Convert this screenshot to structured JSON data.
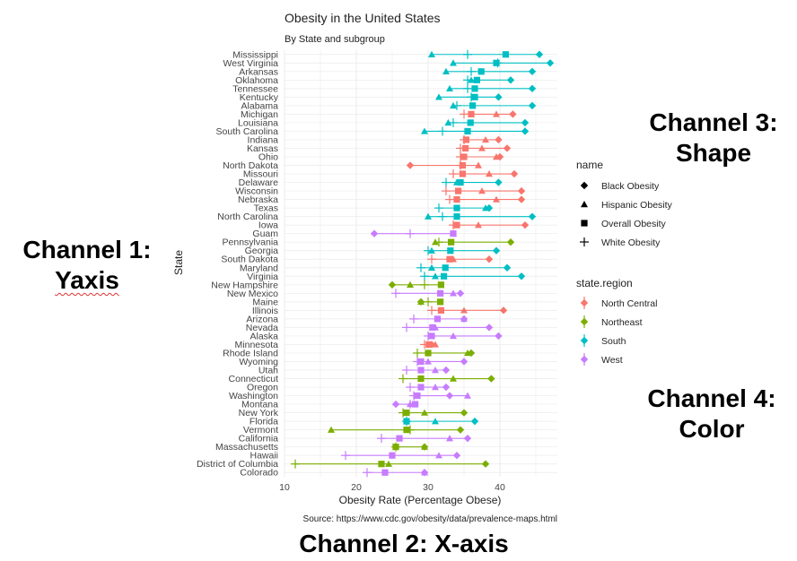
{
  "colors": {
    "North Central": "#F8766D",
    "Northeast": "#7CAE00",
    "South": "#00BFC4",
    "West": "#C77CFF"
  },
  "annotations": {
    "channel1_line1": "Channel 1:",
    "channel1_line2": "Yaxis",
    "channel2": "Channel 2: X-axis",
    "channel3_line1": "Channel 3:",
    "channel3_line2": "Shape",
    "channel4_line1": "Channel 4:",
    "channel4_line2": "Color"
  },
  "chart_data": {
    "type": "dot-range",
    "title": "Obesity in the United States",
    "subtitle": "By State and subgroup",
    "xlabel": "Obesity Rate (Percentage Obese)",
    "ylabel": "State",
    "caption": "Source: https://www.cdc.gov/obesity/data/prevalence-maps.html",
    "xlim": [
      10,
      48
    ],
    "xticks": [
      10,
      20,
      30,
      40
    ],
    "grid": true,
    "legend_placement": "right",
    "shape_legend": {
      "title": "name",
      "items": [
        "Black Obesity",
        "Hispanic Obesity",
        "Overall Obesity",
        "White Obesity"
      ]
    },
    "color_legend": {
      "title": "state.region",
      "items": [
        "North Central",
        "Northeast",
        "South",
        "West"
      ]
    },
    "rows": [
      {
        "state": "Mississippi",
        "region": "South",
        "overall": 40.8,
        "white": 35.5,
        "black": 45.5,
        "hispanic": 30.5
      },
      {
        "state": "West Virginia",
        "region": "South",
        "overall": 39.5,
        "white": 39.7,
        "black": 47.0,
        "hispanic": 33.5
      },
      {
        "state": "Arkansas",
        "region": "South",
        "overall": 37.4,
        "white": 36.0,
        "black": 44.5,
        "hispanic": 32.5
      },
      {
        "state": "Oklahoma",
        "region": "South",
        "overall": 36.8,
        "white": 35.5,
        "black": 41.5,
        "hispanic": 36.0
      },
      {
        "state": "Tennessee",
        "region": "South",
        "overall": 36.5,
        "white": 35.5,
        "black": 44.5,
        "hispanic": 33.0
      },
      {
        "state": "Kentucky",
        "region": "South",
        "overall": 36.5,
        "white": 36.0,
        "black": 39.8,
        "hispanic": 31.5
      },
      {
        "state": "Alabama",
        "region": "South",
        "overall": 36.2,
        "white": 34.0,
        "black": 44.5,
        "hispanic": 33.5
      },
      {
        "state": "Michigan",
        "region": "North Central",
        "overall": 36.0,
        "white": 35.0,
        "black": 41.8,
        "hispanic": 39.5
      },
      {
        "state": "Louisiana",
        "region": "South",
        "overall": 35.9,
        "white": 33.5,
        "black": 43.5,
        "hispanic": 32.8
      },
      {
        "state": "South Carolina",
        "region": "South",
        "overall": 35.5,
        "white": 32.0,
        "black": 43.5,
        "hispanic": 29.5
      },
      {
        "state": "Indiana",
        "region": "North Central",
        "overall": 35.3,
        "white": 35.0,
        "black": 39.8,
        "hispanic": 38.0
      },
      {
        "state": "Kansas",
        "region": "North Central",
        "overall": 35.2,
        "white": 34.5,
        "black": 41.0,
        "hispanic": 37.5
      },
      {
        "state": "Ohio",
        "region": "North Central",
        "overall": 35.0,
        "white": 34.5,
        "black": 40.0,
        "hispanic": 39.5
      },
      {
        "state": "North Dakota",
        "region": "North Central",
        "overall": 34.8,
        "white": 34.5,
        "black": 27.5,
        "hispanic": 37.0
      },
      {
        "state": "Missouri",
        "region": "North Central",
        "overall": 34.8,
        "white": 33.5,
        "black": 42.0,
        "hispanic": 38.5
      },
      {
        "state": "Delaware",
        "region": "South",
        "overall": 34.5,
        "white": 32.5,
        "black": 39.8,
        "hispanic": 34.0
      },
      {
        "state": "Wisconsin",
        "region": "North Central",
        "overall": 34.2,
        "white": 32.5,
        "black": 43.0,
        "hispanic": 37.5
      },
      {
        "state": "Nebraska",
        "region": "North Central",
        "overall": 34.0,
        "white": 33.0,
        "black": 43.0,
        "hispanic": 39.5
      },
      {
        "state": "Texas",
        "region": "South",
        "overall": 34.0,
        "white": 31.5,
        "black": 38.5,
        "hispanic": 38.0
      },
      {
        "state": "North Carolina",
        "region": "South",
        "overall": 34.0,
        "white": 32.0,
        "black": 44.5,
        "hispanic": 30.0
      },
      {
        "state": "Iowa",
        "region": "North Central",
        "overall": 34.0,
        "white": 33.5,
        "black": 43.5,
        "hispanic": 37.0
      },
      {
        "state": "Guam",
        "region": "West",
        "overall": 33.5,
        "white": 27.5,
        "black": 22.5,
        "hispanic": 33.5
      },
      {
        "state": "Pennsylvania",
        "region": "Northeast",
        "overall": 33.2,
        "white": 31.5,
        "black": 41.5,
        "hispanic": 31.0
      },
      {
        "state": "Georgia",
        "region": "South",
        "overall": 33.1,
        "white": 30.0,
        "black": 39.5,
        "hispanic": 30.5
      },
      {
        "state": "South Dakota",
        "region": "North Central",
        "overall": 33.0,
        "white": 30.5,
        "black": 38.5,
        "hispanic": 33.5
      },
      {
        "state": "Maryland",
        "region": "South",
        "overall": 32.4,
        "white": 29.0,
        "black": 41.0,
        "hispanic": 30.5
      },
      {
        "state": "Virginia",
        "region": "South",
        "overall": 32.2,
        "white": 29.5,
        "black": 43.0,
        "hispanic": 31.0
      },
      {
        "state": "New Hampshire",
        "region": "Northeast",
        "overall": 31.8,
        "white": 29.5,
        "black": 25.0,
        "hispanic": 27.5
      },
      {
        "state": "New Mexico",
        "region": "West",
        "overall": 31.7,
        "white": 25.5,
        "black": 34.5,
        "hispanic": 33.5
      },
      {
        "state": "Maine",
        "region": "Northeast",
        "overall": 31.7,
        "white": 30.0,
        "black": 29.0,
        "hispanic": 29.0
      },
      {
        "state": "Illinois",
        "region": "North Central",
        "overall": 31.8,
        "white": 30.5,
        "black": 40.5,
        "hispanic": 35.0
      },
      {
        "state": "Arizona",
        "region": "West",
        "overall": 31.3,
        "white": 28.0,
        "black": 35.0,
        "hispanic": 35.0
      },
      {
        "state": "Nevada",
        "region": "West",
        "overall": 30.6,
        "white": 27.0,
        "black": 38.5,
        "hispanic": 31.0
      },
      {
        "state": "Alaska",
        "region": "West",
        "overall": 30.5,
        "white": 30.0,
        "black": 39.8,
        "hispanic": 33.5
      },
      {
        "state": "Minnesota",
        "region": "North Central",
        "overall": 30.1,
        "white": 29.5,
        "black": 30.5,
        "hispanic": 31.0
      },
      {
        "state": "Rhode Island",
        "region": "Northeast",
        "overall": 30.0,
        "white": 28.5,
        "black": 36.0,
        "hispanic": 35.5
      },
      {
        "state": "Wyoming",
        "region": "West",
        "overall": 29.0,
        "white": 28.5,
        "black": 35.0,
        "hispanic": 30.0
      },
      {
        "state": "Utah",
        "region": "West",
        "overall": 29.0,
        "white": 27.0,
        "black": 32.5,
        "hispanic": 31.0
      },
      {
        "state": "Connecticut",
        "region": "Northeast",
        "overall": 29.0,
        "white": 26.5,
        "black": 38.8,
        "hispanic": 33.5
      },
      {
        "state": "Oregon",
        "region": "West",
        "overall": 29.0,
        "white": 27.5,
        "black": 32.5,
        "hispanic": 31.0
      },
      {
        "state": "Washington",
        "region": "West",
        "overall": 28.5,
        "white": 28.0,
        "black": 33.0,
        "hispanic": 35.5
      },
      {
        "state": "Montana",
        "region": "West",
        "overall": 28.2,
        "white": 27.5,
        "black": 25.5,
        "hispanic": 27.5
      },
      {
        "state": "New York",
        "region": "Northeast",
        "overall": 27.0,
        "white": 26.5,
        "black": 35.0,
        "hispanic": 29.5
      },
      {
        "state": "Florida",
        "region": "South",
        "overall": 27.0,
        "white": 27.0,
        "black": 36.5,
        "hispanic": 31.0
      },
      {
        "state": "Vermont",
        "region": "Northeast",
        "overall": 27.0,
        "white": 27.5,
        "black": 34.5,
        "hispanic": 16.5
      },
      {
        "state": "California",
        "region": "West",
        "overall": 26.0,
        "white": 23.5,
        "black": 35.5,
        "hispanic": 33.0
      },
      {
        "state": "Massachusetts",
        "region": "Northeast",
        "overall": 25.5,
        "white": 25.5,
        "black": 29.5,
        "hispanic": 29.5
      },
      {
        "state": "Hawaii",
        "region": "West",
        "overall": 25.0,
        "white": 18.5,
        "black": 34.0,
        "hispanic": 31.5
      },
      {
        "state": "District of Columbia",
        "region": "Northeast",
        "overall": 23.5,
        "white": 11.5,
        "black": 38.0,
        "hispanic": 24.5
      },
      {
        "state": "Colorado",
        "region": "West",
        "overall": 24.0,
        "white": 21.5,
        "black": 29.5,
        "hispanic": 29.5
      }
    ]
  }
}
